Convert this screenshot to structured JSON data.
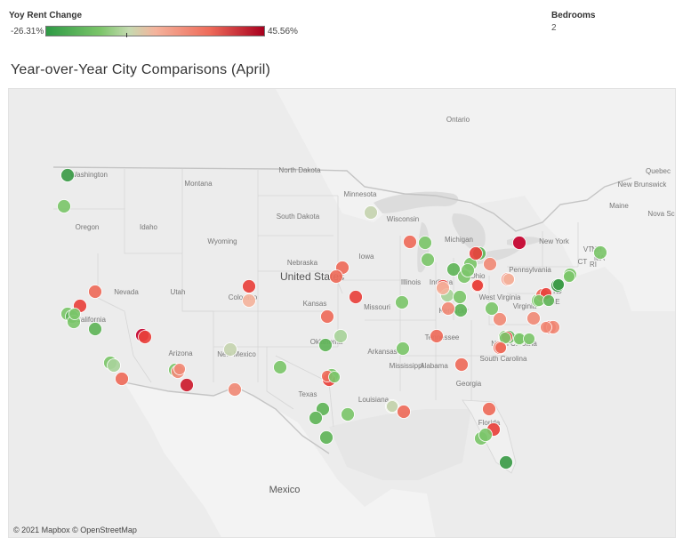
{
  "legend": {
    "title": "Yoy Rent Change",
    "min_label": "-26.31%",
    "max_label": "45.56%",
    "colors": [
      "#2e9a45",
      "#7cc56a",
      "#c5dab0",
      "#f4b39c",
      "#ee6b5a",
      "#a8001e"
    ]
  },
  "filter": {
    "label": "Bedrooms",
    "value": "2"
  },
  "title": "Year-over-Year City Comparisons (April)",
  "map": {
    "copyright": "© 2021 Mapbox © OpenStreetMap",
    "region_labels": [
      "Ontario",
      "Quebec",
      "New Brunswick",
      "Nova Scotia",
      "Washington",
      "Montana",
      "North Dakota",
      "Minnesota",
      "Oregon",
      "Idaho",
      "South Dakota",
      "Wisconsin",
      "Wyoming",
      "Michigan",
      "New York",
      "Maine",
      "VT",
      "NH",
      "MA",
      "CT",
      "RI",
      "Nebraska",
      "Iowa",
      "Pennsylvania",
      "Nevada",
      "Utah",
      "United States",
      "Illinois",
      "Indiana",
      "Ohio",
      "NJ",
      "Colorado",
      "Kansas",
      "Missouri",
      "West Virginia",
      "DE",
      "California",
      "Kentucky",
      "Virginia",
      "Oklahoma",
      "Tennessee",
      "Arizona",
      "New Mexico",
      "Arkansas",
      "North Carolina",
      "Mississippi",
      "Alabama",
      "Georgia",
      "South Carolina",
      "Texas",
      "Louisiana",
      "Florida",
      "Mexico"
    ]
  },
  "cities": [
    {
      "color": "#3c9b48"
    },
    {
      "color": "#7cc56a"
    },
    {
      "color": "#ee6b5a"
    },
    {
      "color": "#e8413c"
    },
    {
      "color": "#7cc56a"
    },
    {
      "color": "#60b458"
    },
    {
      "color": "#7cc56a"
    },
    {
      "color": "#60b458"
    },
    {
      "color": "#7cc56a"
    },
    {
      "color": "#c4002c"
    },
    {
      "color": "#e8413c"
    },
    {
      "color": "#7cc56a"
    },
    {
      "color": "#a8d39a"
    },
    {
      "color": "#ee6b5a"
    },
    {
      "color": "#7cc56a"
    },
    {
      "color": "#f08a76"
    },
    {
      "color": "#f08a76"
    },
    {
      "color": "#cc1b2e"
    },
    {
      "color": "#e8413c"
    },
    {
      "color": "#f4b39c"
    },
    {
      "color": "#c6d4b0"
    },
    {
      "color": "#f08a76"
    },
    {
      "color": "#7cc56a"
    },
    {
      "color": "#ee6b5a"
    },
    {
      "color": "#ee6b5a"
    },
    {
      "color": "#ee6b5a"
    },
    {
      "color": "#e8413c"
    },
    {
      "color": "#60b458"
    },
    {
      "color": "#a8d39a"
    },
    {
      "color": "#7cc56a"
    },
    {
      "color": "#e8413c"
    },
    {
      "color": "#ee6b5a"
    },
    {
      "color": "#7cc56a"
    },
    {
      "color": "#60b458"
    },
    {
      "color": "#60b458"
    },
    {
      "color": "#7cc56a"
    },
    {
      "color": "#60b458"
    },
    {
      "color": "#7cc56a"
    },
    {
      "color": "#c6d4b0"
    },
    {
      "color": "#ee6b5a"
    },
    {
      "color": "#c6d4b0"
    },
    {
      "color": "#ee6b5a"
    },
    {
      "color": "#7cc56a"
    },
    {
      "color": "#7cc56a"
    },
    {
      "color": "#e8413c"
    },
    {
      "color": "#7cc56a"
    },
    {
      "color": "#ee6b5a"
    },
    {
      "color": "#a8d39a"
    },
    {
      "color": "#ee6b5a"
    },
    {
      "color": "#60b458"
    },
    {
      "color": "#60b458"
    },
    {
      "color": "#7cc56a"
    },
    {
      "color": "#f4b39c"
    },
    {
      "color": "#f08a76"
    },
    {
      "color": "#7cc56a"
    },
    {
      "color": "#7cc56a"
    },
    {
      "color": "#60b458"
    },
    {
      "color": "#7cc56a"
    },
    {
      "color": "#f08a76"
    },
    {
      "color": "#7cc56a"
    },
    {
      "color": "#f08a76"
    },
    {
      "color": "#3c9b48"
    },
    {
      "color": "#7cc56a"
    },
    {
      "color": "#7cc56a"
    },
    {
      "color": "#7cc56a"
    },
    {
      "color": "#e8413c"
    },
    {
      "color": "#f08a76"
    },
    {
      "color": "#ee6b5a"
    },
    {
      "color": "#ee6b5a"
    },
    {
      "color": "#f08a76"
    },
    {
      "color": "#e8413c"
    },
    {
      "color": "#7cc56a"
    },
    {
      "color": "#7cc56a"
    },
    {
      "color": "#60b458"
    },
    {
      "color": "#7cc56a"
    },
    {
      "color": "#7cc56a"
    },
    {
      "color": "#e8413c"
    },
    {
      "color": "#ee6b5a"
    },
    {
      "color": "#7cc56a"
    },
    {
      "color": "#c6d4b0"
    },
    {
      "color": "#ee6b5a"
    },
    {
      "color": "#e8413c"
    },
    {
      "color": "#f08a76"
    },
    {
      "color": "#f08a76"
    },
    {
      "color": "#e8413c"
    },
    {
      "color": "#c4002c"
    },
    {
      "color": "#f4b39c"
    },
    {
      "color": "#7cc56a"
    },
    {
      "color": "#7cc56a"
    },
    {
      "color": "#3c9b48"
    },
    {
      "color": "#7cc56a"
    },
    {
      "color": "#ee6b5a"
    },
    {
      "color": "#e8413c"
    },
    {
      "color": "#60b458"
    },
    {
      "color": "#7cc56a"
    },
    {
      "color": "#3c9b48"
    }
  ]
}
